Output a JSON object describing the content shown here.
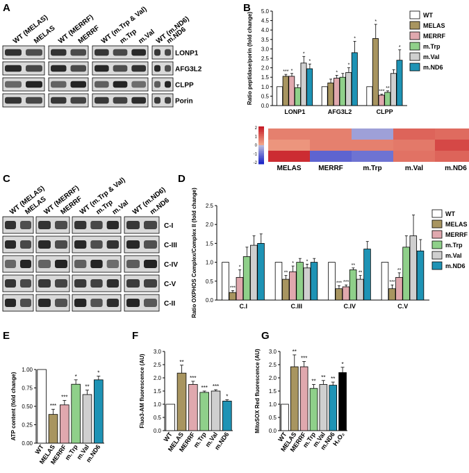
{
  "panel_letters": {
    "A": "A",
    "B": "B",
    "C": "C",
    "D": "D",
    "E": "E",
    "F": "F",
    "G": "G"
  },
  "colors": {
    "WT": "#ffffff",
    "MELAS": "#a89560",
    "MERRF": "#e0a8ae",
    "m.Trp": "#8fd08a",
    "m.Val": "#cfcfcf",
    "m.ND6": "#1e93b5"
  },
  "blot_A": {
    "headers": [
      [
        "WT (MELAS)",
        "MELAS"
      ],
      [
        "WT (MERRF)",
        "MERRF"
      ],
      [
        "WT (m.Trp & Val)",
        "m.Trp",
        "m.Val"
      ],
      [
        "WT (m.ND6)",
        "m.ND6"
      ]
    ],
    "rows": [
      "LONP1",
      "AFG3L2",
      "CLPP",
      "Porin"
    ]
  },
  "blot_C": {
    "headers": [
      [
        "WT (MELAS)",
        "MELAS"
      ],
      [
        "WT (MERRF)",
        "MERRF"
      ],
      [
        "WT (m.Trp & Val)",
        "m.Trp",
        "m.Val"
      ],
      [
        "WT (m.ND6)",
        "m.ND6"
      ]
    ],
    "rows": [
      "C-I",
      "C-III",
      "C-IV",
      "C-V",
      "C-II"
    ]
  },
  "heatmap": {
    "rows": [
      "LONP1",
      "AFG3L2",
      "CLPP"
    ],
    "cols": [
      "MELAS",
      "MERRF",
      "m.Trp",
      "m.Val",
      "m.ND6"
    ],
    "scale_ticks": [
      "2",
      "1",
      "0",
      "-1",
      "-2"
    ],
    "values": [
      [
        0.6,
        0.6,
        -0.4,
        1.0,
        0.9
      ],
      [
        0.3,
        0.6,
        0.6,
        0.7,
        1.4
      ],
      [
        1.8,
        -1.2,
        -1.0,
        0.8,
        1.0
      ]
    ]
  },
  "chart_data": [
    {
      "id": "B",
      "type": "bar",
      "ylabel": "Ratio peptidase/porin (fold change)",
      "ylim": [
        0,
        5
      ],
      "yticks": [
        "0.0",
        "0.5",
        "1.0",
        "1.5",
        "2.0",
        "2.5",
        "3.0",
        "3.5",
        "4.0",
        "4.5",
        "5.0"
      ],
      "categories": [
        "LONP1",
        "AFG3L2",
        "CLPP"
      ],
      "legend": [
        "WT",
        "MELAS",
        "MERRF",
        "m.Trp",
        "m.Val",
        "m.ND6"
      ],
      "series": [
        {
          "name": "WT",
          "values": [
            1.0,
            1.0,
            1.0
          ],
          "err": [
            0,
            0,
            0
          ],
          "sig": [
            "",
            "",
            ""
          ]
        },
        {
          "name": "MELAS",
          "values": [
            1.55,
            1.2,
            3.55
          ],
          "err": [
            0.1,
            0.2,
            0.75
          ],
          "sig": [
            "***",
            "",
            "*"
          ]
        },
        {
          "name": "MERRF",
          "values": [
            1.55,
            1.45,
            0.55
          ],
          "err": [
            0.15,
            0.15,
            0.05
          ],
          "sig": [
            "*",
            "*",
            "***"
          ]
        },
        {
          "name": "m.Trp",
          "values": [
            0.95,
            1.5,
            0.7
          ],
          "err": [
            0.15,
            0.2,
            0.08
          ],
          "sig": [
            "",
            "",
            "**"
          ]
        },
        {
          "name": "m.Val",
          "values": [
            2.25,
            1.75,
            1.7
          ],
          "err": [
            0.35,
            0.25,
            0.2
          ],
          "sig": [
            "*",
            "*",
            ""
          ]
        },
        {
          "name": "m.ND6",
          "values": [
            1.95,
            2.8,
            2.4
          ],
          "err": [
            0.25,
            0.6,
            0.55
          ],
          "sig": [
            "*",
            "*",
            "*"
          ]
        }
      ]
    },
    {
      "id": "D",
      "type": "bar",
      "ylabel": "Ratio OXPHOS Complex/Complex II (fold change)",
      "ylim": [
        0,
        2.5
      ],
      "yticks": [
        "0.0",
        "0.5",
        "1.0",
        "1.5",
        "2.0",
        "2.5"
      ],
      "categories": [
        "C.I",
        "C.III",
        "C.IV",
        "C.V"
      ],
      "legend": [
        "WT",
        "MELAS",
        "MERRF",
        "m.Trp",
        "m.Val",
        "m.ND6"
      ],
      "series": [
        {
          "name": "WT",
          "values": [
            1.0,
            1.0,
            1.0,
            1.0
          ],
          "err": [
            0,
            0,
            0,
            0
          ],
          "sig": [
            "",
            "",
            "",
            ""
          ]
        },
        {
          "name": "MELAS",
          "values": [
            0.2,
            0.55,
            0.3,
            0.3
          ],
          "err": [
            0.05,
            0.1,
            0.08,
            0.1
          ],
          "sig": [
            "***",
            "**",
            "***",
            "***"
          ]
        },
        {
          "name": "MERRF",
          "values": [
            0.6,
            0.75,
            0.35,
            0.6
          ],
          "err": [
            0.2,
            0.15,
            0.05,
            0.12
          ],
          "sig": [
            "*",
            "*",
            "***",
            "**"
          ]
        },
        {
          "name": "m.Trp",
          "values": [
            1.15,
            1.0,
            0.8,
            1.4
          ],
          "err": [
            0.25,
            0.1,
            0.05,
            0.3
          ],
          "sig": [
            "",
            "",
            "**",
            ""
          ]
        },
        {
          "name": "m.Val",
          "values": [
            1.45,
            0.85,
            0.55,
            1.7
          ],
          "err": [
            0.25,
            0.1,
            0.1,
            0.55
          ],
          "sig": [
            "",
            "*",
            "**",
            ""
          ]
        },
        {
          "name": "m.ND6",
          "values": [
            1.5,
            1.0,
            1.35,
            1.3
          ],
          "err": [
            0.25,
            0.1,
            0.2,
            0.3
          ],
          "sig": [
            "",
            "",
            "",
            ""
          ]
        }
      ]
    },
    {
      "id": "E",
      "type": "bar",
      "ylabel": "ATP content (fold change)",
      "ylim": [
        0,
        1.0
      ],
      "yticks": [
        "0.00",
        "0.25",
        "0.50",
        "0.75",
        "1.00"
      ],
      "categories": [
        "WT",
        "MELAS",
        "MERRF",
        "m.Trp",
        "m.Val",
        "m.ND6"
      ],
      "values": [
        1.0,
        0.39,
        0.52,
        0.8,
        0.66,
        0.86
      ],
      "err": [
        0,
        0.07,
        0.06,
        0.06,
        0.06,
        0.05
      ],
      "sig": [
        "",
        "***",
        "***",
        "*",
        "**",
        "*"
      ]
    },
    {
      "id": "F",
      "type": "bar",
      "ylabel": "Fluo3-AM fluorescence (AU)",
      "ylim": [
        0,
        3.0
      ],
      "yticks": [
        "0.0",
        "0.5",
        "1.0",
        "1.5",
        "2.0",
        "2.5",
        "3.0"
      ],
      "categories": [
        "WT",
        "MELAS",
        "MERRF",
        "m.Trp",
        "m.Val",
        "m.ND6"
      ],
      "values": [
        1.0,
        2.18,
        1.75,
        1.45,
        1.5,
        1.12
      ],
      "err": [
        0,
        0.3,
        0.12,
        0.05,
        0.05,
        0.05
      ],
      "sig": [
        "",
        "**",
        "***",
        "***",
        "***",
        "*"
      ]
    },
    {
      "id": "G",
      "type": "bar",
      "ylabel": "MitoSOX Red fluorescence (AU)",
      "ylim": [
        0,
        3.0
      ],
      "yticks": [
        "0.0",
        "0.5",
        "1.0",
        "1.5",
        "2.0",
        "2.5",
        "3.0"
      ],
      "categories": [
        "WT",
        "MELAS",
        "MERRF",
        "m.Trp",
        "m.Val",
        "m.ND6",
        "H2O2"
      ],
      "values": [
        1.0,
        2.42,
        2.42,
        1.6,
        1.75,
        1.72,
        2.2
      ],
      "err": [
        0,
        0.45,
        0.2,
        0.15,
        0.15,
        0.12,
        0.2
      ],
      "sig": [
        "",
        "**",
        "***",
        "**",
        "**",
        "**",
        "*"
      ]
    }
  ]
}
